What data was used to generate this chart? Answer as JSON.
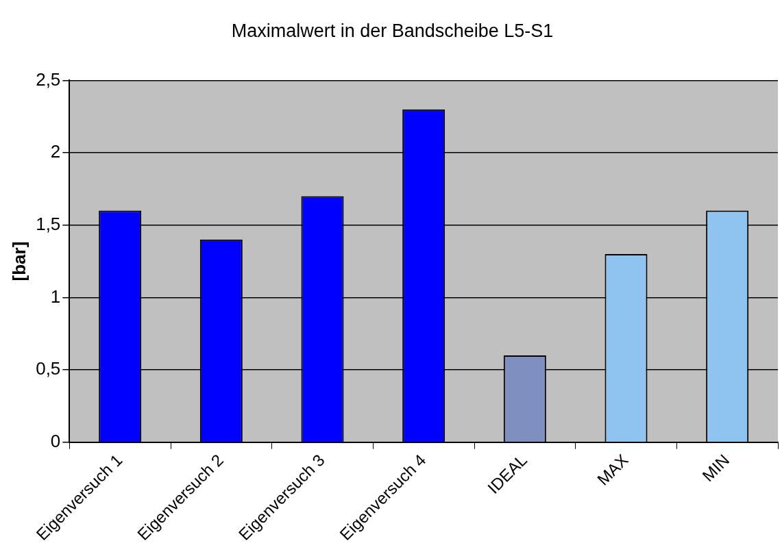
{
  "chart_data": {
    "type": "bar",
    "title": "Maximalwert in der Bandscheibe L5-S1",
    "ylabel": "[bar]",
    "categories": [
      "Eigenversuch 1",
      "Eigenversuch 2",
      "Eigenversuch 3",
      "Eigenversuch 4",
      "IDEAL",
      "MAX",
      "MIN"
    ],
    "values": [
      1.6,
      1.4,
      1.7,
      2.3,
      0.6,
      1.3,
      1.6
    ],
    "colors": [
      "#0000ff",
      "#0000ff",
      "#0000ff",
      "#0000ff",
      "#7f8fbf",
      "#8fc4f0",
      "#8fc4f0"
    ],
    "ylim": [
      0,
      2.5
    ],
    "yticks": [
      {
        "value": 0,
        "label": "0"
      },
      {
        "value": 0.5,
        "label": "0,5"
      },
      {
        "value": 1,
        "label": "1"
      },
      {
        "value": 1.5,
        "label": "1,5"
      },
      {
        "value": 2,
        "label": "2"
      },
      {
        "value": 2.5,
        "label": "2,5"
      }
    ],
    "grid": "y",
    "legend": false
  }
}
